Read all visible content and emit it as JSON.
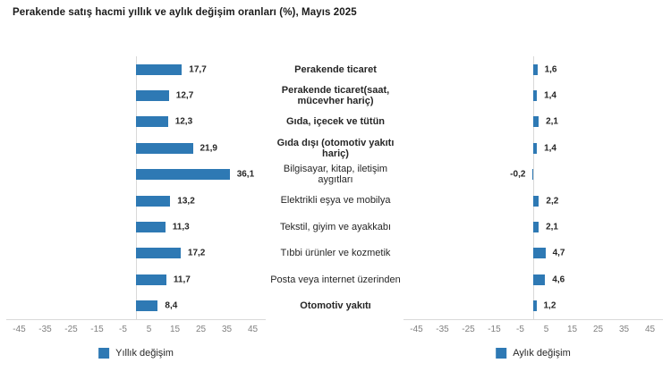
{
  "title": "Perakende satış hacmi yıllık ve aylık değişim oranları (%), Mayıs 2025",
  "colors": {
    "bar": "#2E79B4",
    "axis_line": "#D9D9D9",
    "tick_text": "#808080",
    "text": "#262626"
  },
  "chart_data": {
    "type": "bar",
    "orientation": "horizontal",
    "title": "Perakende satış hacmi yıllık ve aylık değişim oranları (%), Mayıs 2025",
    "categories": [
      "Perakende ticaret",
      "Perakende ticaret(saat, mücevher hariç)",
      "Gıda, içecek ve tütün",
      "Gıda dışı (otomotiv yakıtı hariç)",
      "Bilgisayar, kitap, iletişim aygıtları",
      "Elektrikli eşya ve mobilya",
      "Tekstil, giyim ve ayakkabı",
      "Tıbbi ürünler ve kozmetik",
      "Posta veya internet üzerinden",
      "Otomotiv yakıtı"
    ],
    "categories_display": [
      "Perakende ticaret",
      "Perakende ticaret(saat,\nmücevher hariç)",
      "Gıda, içecek ve tütün",
      "Gıda dışı (otomotiv yakıtı\nhariç)",
      "Bilgisayar, kitap, iletişim\naygıtları",
      "Elektrikli eşya ve mobilya",
      "Tekstil, giyim ve ayakkabı",
      "Tıbbi ürünler ve kozmetik",
      "Posta veya internet üzerinden",
      "Otomotiv yakıtı"
    ],
    "category_bold": [
      true,
      true,
      true,
      true,
      false,
      false,
      false,
      false,
      false,
      true
    ],
    "series": [
      {
        "name": "Yıllık değişim",
        "values": [
          17.7,
          12.7,
          12.3,
          21.9,
          36.1,
          13.2,
          11.3,
          17.2,
          11.7,
          8.4
        ],
        "value_labels": [
          "17,7",
          "12,7",
          "12,3",
          "21,9",
          "36,1",
          "13,2",
          "11,3",
          "17,2",
          "11,7",
          "8,4"
        ]
      },
      {
        "name": "Aylık değişim",
        "values": [
          1.6,
          1.4,
          2.1,
          1.4,
          -0.2,
          2.2,
          2.1,
          4.7,
          4.6,
          1.2
        ],
        "value_labels": [
          "1,6",
          "1,4",
          "2,1",
          "1,4",
          "-0,2",
          "2,2",
          "2,1",
          "4,7",
          "4,6",
          "1,2"
        ]
      }
    ],
    "xlim": [
      -50,
      50
    ],
    "x_ticks": [
      -45,
      -35,
      -25,
      -15,
      -5,
      5,
      15,
      25,
      35,
      45
    ],
    "x_tick_labels": [
      "-45",
      "-35",
      "-25",
      "-15",
      "-5",
      "5",
      "15",
      "25",
      "35",
      "45"
    ],
    "grid": false,
    "legend_position": "bottom"
  }
}
